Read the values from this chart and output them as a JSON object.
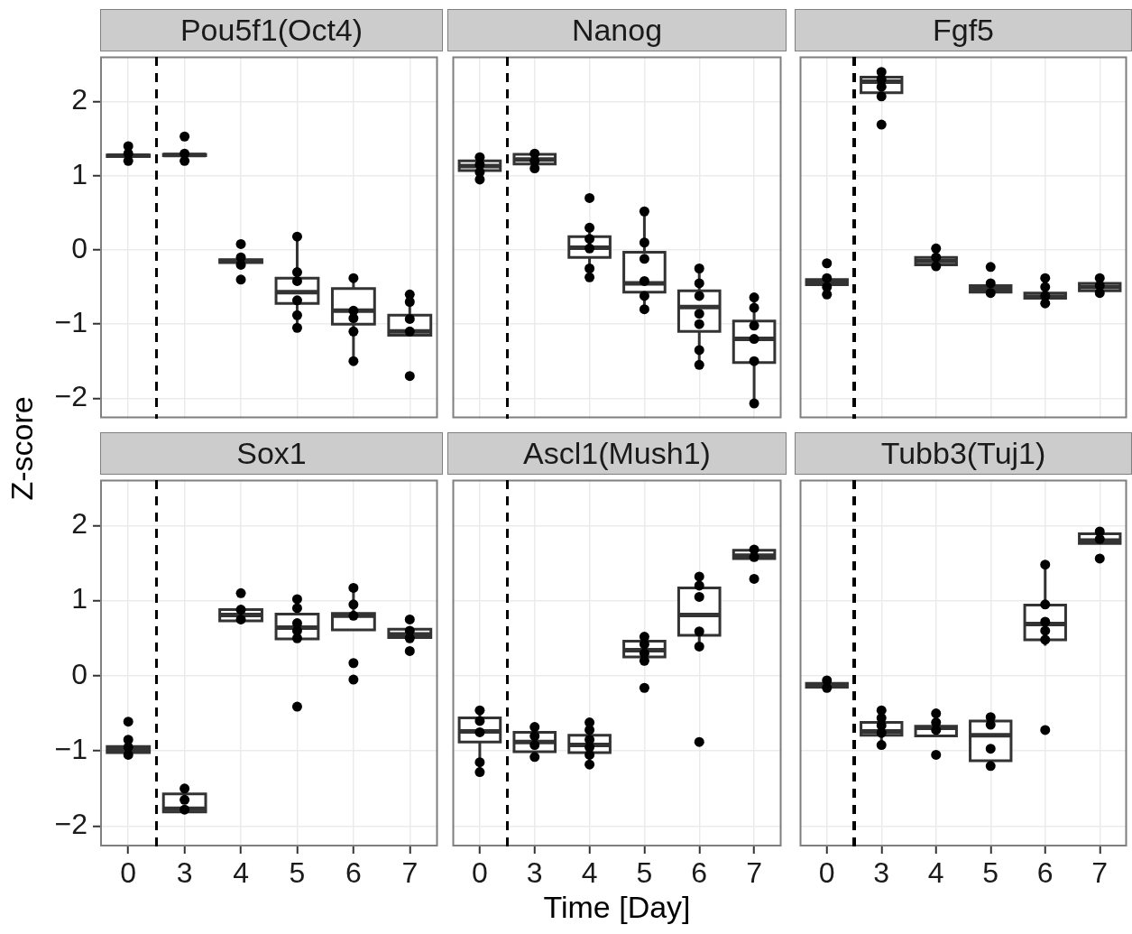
{
  "chart_data": [
    {
      "type": "box",
      "title": "Pou5f1(Oct4)",
      "ylabel": "Z-score",
      "categories": [
        "0",
        "3",
        "4",
        "5",
        "6",
        "7"
      ],
      "ylim": [
        -2.27,
        2.61
      ],
      "yticks": [
        -2,
        -1,
        0,
        1,
        2
      ],
      "grid": true,
      "tick_labels": "y",
      "series": [
        {
          "type": "box",
          "color": "#333333",
          "boxes": [
            {
              "low": 1.25,
              "q1": 1.26,
              "median": 1.27,
              "q3": 1.28,
              "high": 1.29
            },
            {
              "low": 1.26,
              "q1": 1.27,
              "median": 1.28,
              "q3": 1.29,
              "high": 1.3
            },
            {
              "low": -0.18,
              "q1": -0.17,
              "median": -0.15,
              "q3": -0.13,
              "high": -0.12
            },
            {
              "low": -1.05,
              "q1": -0.72,
              "median": -0.57,
              "q3": -0.38,
              "high": 0.18
            },
            {
              "low": -1.5,
              "q1": -1.0,
              "median": -0.82,
              "q3": -0.52,
              "high": -0.38
            },
            {
              "low": -1.15,
              "q1": -1.15,
              "median": -1.1,
              "q3": -0.88,
              "high": -0.6
            }
          ]
        },
        {
          "type": "scatter",
          "marker": "circle",
          "color": "#000000",
          "x": [
            "0",
            "0",
            "0",
            "3",
            "3",
            "3",
            "4",
            "4",
            "4",
            "4",
            "5",
            "5",
            "5",
            "5",
            "5",
            "5",
            "6",
            "6",
            "6",
            "6",
            "6",
            "7",
            "7",
            "7",
            "7",
            "7"
          ],
          "values": [
            1.4,
            1.3,
            1.2,
            1.53,
            1.3,
            1.2,
            0.08,
            -0.1,
            -0.2,
            -0.4,
            0.18,
            -0.3,
            -0.42,
            -0.68,
            -0.88,
            -1.05,
            -0.38,
            -0.82,
            -0.92,
            -1.1,
            -1.5,
            -0.6,
            -0.7,
            -0.93,
            -1.1,
            -1.7
          ]
        }
      ]
    },
    {
      "type": "box",
      "title": "Nanog",
      "categories": [
        "0",
        "3",
        "4",
        "5",
        "6",
        "7"
      ],
      "ylim": [
        -2.27,
        2.61
      ],
      "yticks": [
        -2,
        -1,
        0,
        1,
        2
      ],
      "grid": true,
      "tick_labels": false,
      "series": [
        {
          "type": "box",
          "color": "#333333",
          "boxes": [
            {
              "low": 0.95,
              "q1": 1.07,
              "median": 1.13,
              "q3": 1.2,
              "high": 1.27
            },
            {
              "low": 1.1,
              "q1": 1.16,
              "median": 1.22,
              "q3": 1.29,
              "high": 1.3
            },
            {
              "low": -0.37,
              "q1": -0.1,
              "median": 0.03,
              "q3": 0.18,
              "high": 0.3
            },
            {
              "low": -0.8,
              "q1": -0.57,
              "median": -0.45,
              "q3": -0.03,
              "high": 0.52
            },
            {
              "low": -1.55,
              "q1": -1.1,
              "median": -0.77,
              "q3": -0.55,
              "high": -0.25
            },
            {
              "low": -2.07,
              "q1": -1.52,
              "median": -1.2,
              "q3": -0.96,
              "high": -0.64
            }
          ]
        },
        {
          "type": "scatter",
          "marker": "circle",
          "color": "#000000",
          "x": [
            "0",
            "0",
            "0",
            "0",
            "3",
            "3",
            "3",
            "4",
            "4",
            "4",
            "4",
            "4",
            "4",
            "5",
            "5",
            "5",
            "5",
            "5",
            "5",
            "6",
            "6",
            "6",
            "6",
            "6",
            "6",
            "6",
            "7",
            "7",
            "7",
            "7",
            "7",
            "7"
          ],
          "values": [
            1.25,
            1.15,
            1.05,
            0.95,
            1.3,
            1.2,
            1.1,
            0.7,
            0.3,
            0.15,
            0.02,
            -0.25,
            -0.37,
            0.52,
            0.1,
            -0.12,
            -0.42,
            -0.62,
            -0.8,
            -0.25,
            -0.45,
            -0.62,
            -0.86,
            -1.0,
            -1.35,
            -1.55,
            -0.64,
            -0.78,
            -1.02,
            -1.2,
            -1.5,
            -2.07
          ]
        }
      ]
    },
    {
      "type": "box",
      "title": "Fgf5",
      "categories": [
        "0",
        "3",
        "4",
        "5",
        "6",
        "7"
      ],
      "ylim": [
        -2.27,
        2.61
      ],
      "yticks": [
        -2,
        -1,
        0,
        1,
        2
      ],
      "grid": true,
      "tick_labels": false,
      "series": [
        {
          "type": "box",
          "color": "#333333",
          "boxes": [
            {
              "low": -0.5,
              "q1": -0.47,
              "median": -0.44,
              "q3": -0.4,
              "high": -0.38
            },
            {
              "low": 2.05,
              "q1": 2.12,
              "median": 2.27,
              "q3": 2.33,
              "high": 2.4
            },
            {
              "low": -0.22,
              "q1": -0.2,
              "median": -0.15,
              "q3": -0.1,
              "high": 0.02
            },
            {
              "low": -0.6,
              "q1": -0.57,
              "median": -0.53,
              "q3": -0.48,
              "high": -0.45
            },
            {
              "low": -0.72,
              "q1": -0.65,
              "median": -0.63,
              "q3": -0.58,
              "high": -0.5
            },
            {
              "low": -0.58,
              "q1": -0.55,
              "median": -0.5,
              "q3": -0.45,
              "high": -0.38
            }
          ]
        },
        {
          "type": "scatter",
          "marker": "circle",
          "color": "#000000",
          "x": [
            "0",
            "0",
            "0",
            "0",
            "3",
            "3",
            "3",
            "3",
            "3",
            "4",
            "4",
            "4",
            "5",
            "5",
            "5",
            "6",
            "6",
            "6",
            "6",
            "7",
            "7",
            "7"
          ],
          "values": [
            -0.18,
            -0.38,
            -0.5,
            -0.6,
            2.4,
            2.3,
            2.2,
            2.07,
            1.69,
            0.02,
            -0.1,
            -0.22,
            -0.23,
            -0.45,
            -0.58,
            -0.38,
            -0.5,
            -0.62,
            -0.72,
            -0.38,
            -0.48,
            -0.58
          ]
        }
      ]
    },
    {
      "type": "box",
      "title": "Sox1",
      "categories": [
        "0",
        "3",
        "4",
        "5",
        "6",
        "7"
      ],
      "ylim": [
        -2.27,
        2.61
      ],
      "yticks": [
        -2,
        -1,
        0,
        1,
        2
      ],
      "grid": true,
      "series": [
        {
          "type": "box",
          "color": "#333333",
          "boxes": [
            {
              "low": -1.05,
              "q1": -1.02,
              "median": -0.98,
              "q3": -0.94,
              "high": -0.85
            },
            {
              "low": -1.81,
              "q1": -1.81,
              "median": -1.77,
              "q3": -1.57,
              "high": -1.5
            },
            {
              "low": 0.7,
              "q1": 0.73,
              "median": 0.81,
              "q3": 0.88,
              "high": 0.88
            },
            {
              "low": 0.45,
              "q1": 0.49,
              "median": 0.64,
              "q3": 0.82,
              "high": 1.02
            },
            {
              "low": 0.61,
              "q1": 0.61,
              "median": 0.8,
              "q3": 0.83,
              "high": 1.17
            },
            {
              "low": 0.5,
              "q1": 0.51,
              "median": 0.55,
              "q3": 0.62,
              "high": 0.62
            }
          ]
        },
        {
          "type": "scatter",
          "marker": "circle",
          "color": "#000000",
          "x": [
            "0",
            "0",
            "0",
            "0",
            "3",
            "3",
            "3",
            "4",
            "4",
            "4",
            "5",
            "5",
            "5",
            "5",
            "5",
            "5",
            "6",
            "6",
            "6",
            "6",
            "6",
            "7",
            "7",
            "7",
            "7"
          ],
          "values": [
            -0.61,
            -0.85,
            -0.95,
            -1.05,
            -1.5,
            -1.65,
            -1.78,
            1.1,
            0.88,
            0.75,
            1.02,
            0.9,
            0.7,
            0.6,
            0.5,
            -0.41,
            1.17,
            0.95,
            0.8,
            0.17,
            -0.05,
            0.75,
            0.6,
            0.5,
            0.33
          ]
        }
      ]
    },
    {
      "type": "box",
      "title": "Ascl1(Mush1)",
      "xlabel": "Time [Day]",
      "categories": [
        "0",
        "3",
        "4",
        "5",
        "6",
        "7"
      ],
      "ylim": [
        -2.27,
        2.61
      ],
      "yticks": [
        -2,
        -1,
        0,
        1,
        2
      ],
      "grid": true,
      "tick_labels": "x",
      "series": [
        {
          "type": "box",
          "color": "#333333",
          "boxes": [
            {
              "low": -1.28,
              "q1": -0.88,
              "median": -0.74,
              "q3": -0.56,
              "high": -0.46
            },
            {
              "low": -1.08,
              "q1": -1.01,
              "median": -0.88,
              "q3": -0.75,
              "high": -0.68
            },
            {
              "low": -1.18,
              "q1": -1.02,
              "median": -0.92,
              "q3": -0.79,
              "high": -0.62
            },
            {
              "low": 0.2,
              "q1": 0.25,
              "median": 0.34,
              "q3": 0.46,
              "high": 0.52
            },
            {
              "low": 0.39,
              "q1": 0.54,
              "median": 0.81,
              "q3": 1.17,
              "high": 1.32
            },
            {
              "low": 1.55,
              "q1": 1.56,
              "median": 1.6,
              "q3": 1.67,
              "high": 1.68
            }
          ]
        },
        {
          "type": "scatter",
          "marker": "circle",
          "color": "#000000",
          "x": [
            "0",
            "0",
            "0",
            "0",
            "0",
            "3",
            "3",
            "3",
            "3",
            "4",
            "4",
            "4",
            "4",
            "4",
            "4",
            "5",
            "5",
            "5",
            "5",
            "5",
            "6",
            "6",
            "6",
            "6",
            "6",
            "6",
            "7",
            "7",
            "7"
          ],
          "values": [
            -0.46,
            -0.6,
            -0.75,
            -1.15,
            -1.28,
            -0.68,
            -0.8,
            -0.92,
            -1.08,
            -0.62,
            -0.72,
            -0.85,
            -0.95,
            -1.05,
            -1.18,
            0.52,
            0.42,
            0.3,
            0.2,
            -0.16,
            1.32,
            1.2,
            1.05,
            0.59,
            0.39,
            -0.88,
            1.68,
            1.58,
            1.29
          ]
        }
      ]
    },
    {
      "type": "box",
      "title": "Tubb3(Tuj1)",
      "categories": [
        "0",
        "3",
        "4",
        "5",
        "6",
        "7"
      ],
      "ylim": [
        -2.27,
        2.61
      ],
      "yticks": [
        -2,
        -1,
        0,
        1,
        2
      ],
      "grid": true,
      "tick_labels": "x",
      "series": [
        {
          "type": "box",
          "color": "#333333",
          "boxes": [
            {
              "low": -0.18,
              "q1": -0.15,
              "median": -0.12,
              "q3": -0.1,
              "high": -0.06
            },
            {
              "low": -0.95,
              "q1": -0.79,
              "median": -0.74,
              "q3": -0.62,
              "high": -0.46
            },
            {
              "low": -0.8,
              "q1": -0.8,
              "median": -0.69,
              "q3": -0.67,
              "high": -0.5
            },
            {
              "low": -1.2,
              "q1": -1.13,
              "median": -0.79,
              "q3": -0.6,
              "high": -0.55
            },
            {
              "low": 0.4,
              "q1": 0.48,
              "median": 0.69,
              "q3": 0.94,
              "high": 1.48
            },
            {
              "low": 1.76,
              "q1": 1.76,
              "median": 1.8,
              "q3": 1.89,
              "high": 1.92
            }
          ]
        },
        {
          "type": "scatter",
          "marker": "circle",
          "color": "#000000",
          "x": [
            "0",
            "0",
            "3",
            "3",
            "3",
            "3",
            "3",
            "4",
            "4",
            "4",
            "4",
            "5",
            "5",
            "5",
            "5",
            "6",
            "6",
            "6",
            "6",
            "6",
            "6",
            "7",
            "7",
            "7"
          ],
          "values": [
            -0.06,
            -0.16,
            -0.46,
            -0.56,
            -0.66,
            -0.76,
            -0.92,
            -0.5,
            -0.62,
            -0.72,
            -1.05,
            -0.55,
            -0.65,
            -0.97,
            -1.2,
            1.48,
            0.95,
            0.72,
            0.6,
            0.48,
            -0.72,
            1.92,
            1.82,
            1.56
          ]
        }
      ]
    }
  ]
}
